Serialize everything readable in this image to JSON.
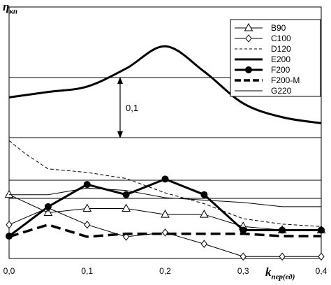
{
  "chart_data": {
    "type": "line",
    "ylabel_main": "η",
    "ylabel_sub": "кп",
    "xlabel_main": "k",
    "xlabel_sub": "пер(ед)",
    "x": [
      0.0,
      0.05,
      0.1,
      0.15,
      0.2,
      0.25,
      0.3,
      0.35,
      0.4
    ],
    "xticks": [
      "0,0",
      "0,1",
      "0,2",
      "0,3",
      "0,4"
    ],
    "xlim": [
      0.0,
      0.4
    ],
    "annotation": "0,1",
    "legend_position": "top-right",
    "grid": "horizontal lines only",
    "series": [
      {
        "name": "B90",
        "style": "thin solid, open triangle markers",
        "color": "#000000",
        "x": [
          0.0,
          0.05,
          0.1,
          0.15,
          0.2,
          0.25,
          0.3,
          0.35,
          0.4
        ],
        "y": [
          0.705,
          0.675,
          0.682,
          0.682,
          0.672,
          0.672,
          0.652,
          0.646,
          0.646
        ]
      },
      {
        "name": "C100",
        "style": "thin solid, open diamond markers",
        "color": "#000000",
        "x": [
          0.0,
          0.05,
          0.1,
          0.15,
          0.2,
          0.25,
          0.3,
          0.35,
          0.4
        ],
        "y": [
          0.655,
          0.683,
          0.655,
          0.635,
          0.642,
          0.623,
          0.602,
          0.602,
          0.602
        ]
      },
      {
        "name": "D120",
        "style": "thin dashed",
        "color": "#000000",
        "x": [
          0.0,
          0.02,
          0.05,
          0.1,
          0.15,
          0.2,
          0.25,
          0.3,
          0.35,
          0.4
        ],
        "y": [
          0.795,
          0.774,
          0.748,
          0.742,
          0.732,
          0.708,
          0.69,
          0.665,
          0.656,
          0.652
        ]
      },
      {
        "name": "E200",
        "style": "thick solid",
        "color": "#000000",
        "x": [
          0.0,
          0.05,
          0.1,
          0.15,
          0.2,
          0.25,
          0.3,
          0.35,
          0.4
        ],
        "y": [
          0.867,
          0.876,
          0.885,
          0.915,
          0.952,
          0.91,
          0.857,
          0.834,
          0.824
        ]
      },
      {
        "name": "F200",
        "style": "thick solid, filled circle markers",
        "color": "#000000",
        "x": [
          0.0,
          0.05,
          0.1,
          0.15,
          0.2,
          0.25,
          0.3,
          0.35,
          0.4
        ],
        "y": [
          0.636,
          0.685,
          0.722,
          0.705,
          0.731,
          0.705,
          0.646,
          0.646,
          0.646
        ]
      },
      {
        "name": "F200-M",
        "style": "thick dashed",
        "color": "#000000",
        "x": [
          0.0,
          0.05,
          0.1,
          0.15,
          0.2,
          0.25,
          0.3,
          0.35,
          0.4
        ],
        "y": [
          0.635,
          0.655,
          0.635,
          0.64,
          0.64,
          0.64,
          0.64,
          0.636,
          0.636
        ]
      },
      {
        "name": "G220",
        "style": "thin solid",
        "color": "#000000",
        "x": [
          0.0,
          0.05,
          0.1,
          0.15,
          0.2,
          0.25,
          0.3,
          0.35,
          0.4
        ],
        "y": [
          0.705,
          0.705,
          0.716,
          0.712,
          0.7,
          0.696,
          0.692,
          0.685,
          0.685
        ]
      }
    ]
  }
}
